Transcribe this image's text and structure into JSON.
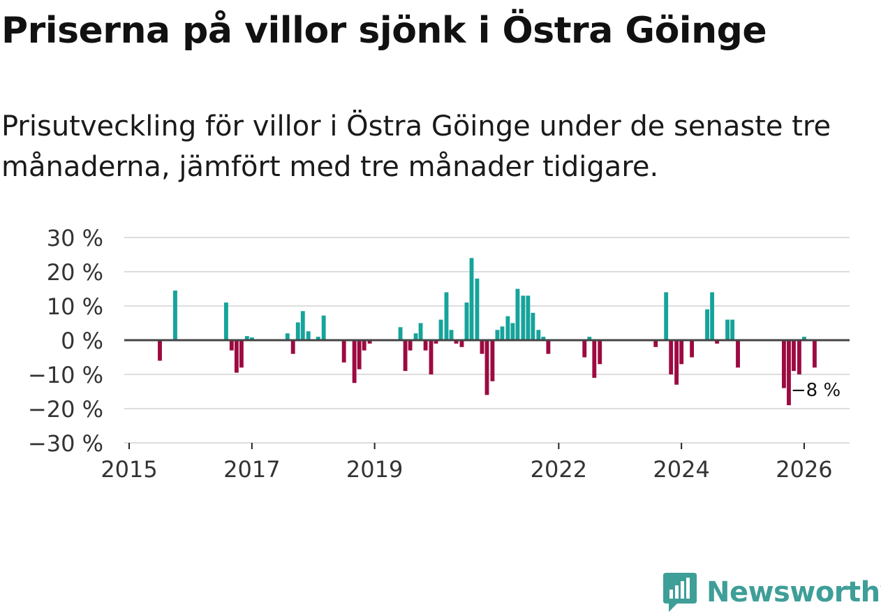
{
  "header": {
    "title": "Priserna på villor sjönk i Östra Göinge",
    "subtitle": "Prisutveckling för villor i Östra Göinge under de senaste tre månaderna, jämfört med tre månader tidigare."
  },
  "brand": {
    "name": "Newsworthy",
    "icon": "newsworthy-logo-icon",
    "color": "#3e9e98"
  },
  "colors": {
    "positive": "#16a39b",
    "negative": "#9c0a41",
    "grid": "#dddddd",
    "zero_line": "#444444"
  },
  "chart_data": {
    "type": "bar",
    "title": "Priserna på villor sjönk i Östra Göinge",
    "xlabel": "",
    "ylabel": "",
    "ylim": [
      -30,
      30
    ],
    "yticks": [
      30,
      20,
      10,
      0,
      -10,
      -20,
      -30
    ],
    "ytick_labels": [
      "30 %",
      "20 %",
      "10 %",
      "0 %",
      "−10 %",
      "−20 %",
      "−30 %"
    ],
    "xticks": [
      {
        "label": "2015",
        "value": 2015.0
      },
      {
        "label": "2017",
        "value": 2017.0
      },
      {
        "label": "2019",
        "value": 2019.0
      },
      {
        "label": "2022",
        "value": 2022.0
      },
      {
        "label": "2024",
        "value": 2024.0
      },
      {
        "label": "2026",
        "value": 2026.0
      }
    ],
    "x_domain": [
      2014.92,
      2026.74
    ],
    "bar_width_months": 0.8,
    "annotation": {
      "text": "−8 %",
      "x": 2026.17,
      "y": -8
    },
    "series": [
      {
        "name": "Prisutveckling",
        "points": [
          [
            2015.5,
            -6
          ],
          [
            2015.75,
            14.5
          ],
          [
            2016.58,
            11
          ],
          [
            2016.67,
            -3
          ],
          [
            2016.75,
            -9.5
          ],
          [
            2016.83,
            -8
          ],
          [
            2016.92,
            1.2
          ],
          [
            2017.0,
            0.8
          ],
          [
            2017.58,
            2
          ],
          [
            2017.67,
            -4
          ],
          [
            2017.75,
            5.2
          ],
          [
            2017.83,
            8.5
          ],
          [
            2017.92,
            2.6
          ],
          [
            2018.08,
            1
          ],
          [
            2018.17,
            7.2
          ],
          [
            2018.5,
            -6.5
          ],
          [
            2018.67,
            -12.5
          ],
          [
            2018.75,
            -8.5
          ],
          [
            2018.83,
            -3
          ],
          [
            2018.92,
            -1
          ],
          [
            2019.42,
            3.8
          ],
          [
            2019.5,
            -9
          ],
          [
            2019.58,
            -3
          ],
          [
            2019.67,
            2
          ],
          [
            2019.75,
            5
          ],
          [
            2019.83,
            -3
          ],
          [
            2019.92,
            -10
          ],
          [
            2020.0,
            -1
          ],
          [
            2020.08,
            6
          ],
          [
            2020.17,
            14
          ],
          [
            2020.25,
            3
          ],
          [
            2020.33,
            -1
          ],
          [
            2020.42,
            -2
          ],
          [
            2020.5,
            11
          ],
          [
            2020.58,
            24
          ],
          [
            2020.67,
            18
          ],
          [
            2020.75,
            -4
          ],
          [
            2020.83,
            -16
          ],
          [
            2020.92,
            -12
          ],
          [
            2021.0,
            3
          ],
          [
            2021.08,
            4
          ],
          [
            2021.17,
            7
          ],
          [
            2021.25,
            5
          ],
          [
            2021.33,
            15
          ],
          [
            2021.42,
            13
          ],
          [
            2021.5,
            13
          ],
          [
            2021.58,
            8
          ],
          [
            2021.67,
            3
          ],
          [
            2021.75,
            1
          ],
          [
            2021.83,
            -4
          ],
          [
            2022.42,
            -5
          ],
          [
            2022.5,
            1
          ],
          [
            2022.58,
            -11
          ],
          [
            2022.67,
            -7
          ],
          [
            2023.58,
            -2
          ],
          [
            2023.75,
            14
          ],
          [
            2023.83,
            -10
          ],
          [
            2023.92,
            -13
          ],
          [
            2024.0,
            -7
          ],
          [
            2024.17,
            -5
          ],
          [
            2024.42,
            9
          ],
          [
            2024.5,
            14
          ],
          [
            2024.58,
            -1
          ],
          [
            2024.75,
            6
          ],
          [
            2024.83,
            6
          ],
          [
            2024.92,
            -8
          ],
          [
            2025.67,
            -14
          ],
          [
            2025.75,
            -19
          ],
          [
            2025.83,
            -9
          ],
          [
            2025.92,
            -10
          ],
          [
            2026.0,
            1
          ],
          [
            2026.17,
            -8
          ]
        ]
      }
    ]
  }
}
